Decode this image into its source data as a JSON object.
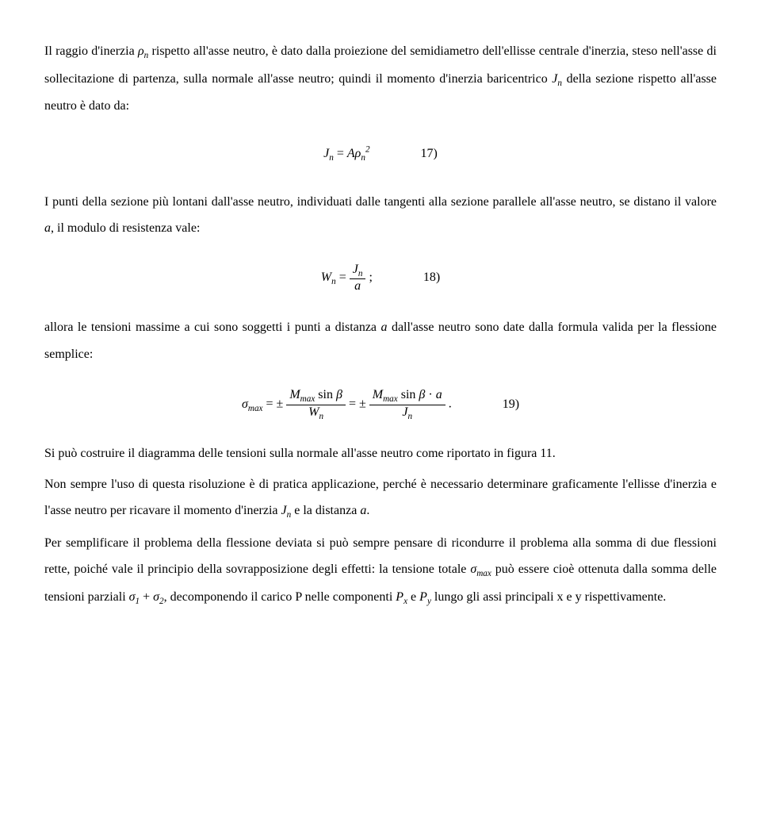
{
  "p1_a": "Il raggio d'inerzia ",
  "p1_sym1": "ρ",
  "p1_sub1": "n",
  "p1_b": " rispetto all'asse neutro, è dato dalla proiezione del semidiametro dell'ellisse centrale d'inerzia, steso nell'asse di sollecitazione di partenza, sulla normale all'asse neutro; quindi il momento d'inerzia baricentrico ",
  "p1_sym2": "J",
  "p1_sub2": "n",
  "p1_c": " della sezione rispetto all'asse neutro è dato da:",
  "eq17_lhs_J": "J",
  "eq17_lhs_sub": "n",
  "eq17_eq": " = ",
  "eq17_A": "A",
  "eq17_rho": "ρ",
  "eq17_rho_sub": "n",
  "eq17_rho_sup": "2",
  "eq17_num": "17)",
  "p2_a": "I punti della sezione più lontani dall'asse neutro, individuati dalle tangenti alla sezione parallele all'asse neutro, se distano il valore ",
  "p2_a_sym": "a",
  "p2_b": ", il modulo di resistenza vale:",
  "eq18_W": "W",
  "eq18_Wsub": "n",
  "eq18_eq": " = ",
  "eq18_top_J": "J",
  "eq18_top_sub": "n",
  "eq18_bot": "a",
  "eq18_semi": " ;",
  "eq18_num": "18)",
  "p3_a": "allora le tensioni massime a cui sono soggetti i punti a distanza ",
  "p3_a_sym": "a",
  "p3_b": " dall'asse neutro sono date dalla formula valida per la flessione semplice:",
  "eq19_sigma": "σ",
  "eq19_sigma_sub": "max",
  "eq19_eq1": " = ± ",
  "eq19_f1_top_M": "M",
  "eq19_f1_top_Msub": "max",
  "eq19_f1_top_sin": " sin ",
  "eq19_f1_top_beta": "β",
  "eq19_f1_bot_W": "W",
  "eq19_f1_bot_sub": "n",
  "eq19_eq2": " = ± ",
  "eq19_f2_top_M": "M",
  "eq19_f2_top_Msub": "max",
  "eq19_f2_top_sin": " sin ",
  "eq19_f2_top_beta": "β",
  "eq19_f2_top_dot": " · ",
  "eq19_f2_top_a": "a",
  "eq19_f2_bot_J": "J",
  "eq19_f2_bot_sub": "n",
  "eq19_period": " .",
  "eq19_num": "19)",
  "p4": "Si può costruire il diagramma delle tensioni sulla normale all'asse neutro come riportato in figura 11.",
  "p5_a": "Non sempre l'uso di questa risoluzione è di pratica applicazione, perché è necessario determinare graficamente l'ellisse d'inerzia e l'asse neutro per ricavare il momento d'inerzia ",
  "p5_J": "J",
  "p5_Jsub": "n",
  "p5_b": " e la distanza ",
  "p5_a_sym": "a",
  "p5_c": ".",
  "p6_a": "Per semplificare il problema della flessione deviata si può sempre pensare di ricondurre il problema alla somma di due flessioni rette, poiché vale il principio della sovrapposizione degli effetti: la tensione totale ",
  "p6_sigma": "σ",
  "p6_sigma_sub": "max",
  "p6_b": " può essere cioè ottenuta dalla somma delle tensioni parziali ",
  "p6_s1": "σ",
  "p6_s1sub": "1",
  "p6_plus": " + ",
  "p6_s2": "σ",
  "p6_s2sub": "2",
  "p6_c": ", decomponendo il carico P nelle componenti ",
  "p6_Px": "P",
  "p6_Pxsub": "x",
  "p6_e": " e ",
  "p6_Py": "P",
  "p6_Pysub": "y",
  "p6_d": " lungo gli assi principali x e y rispettivamente."
}
